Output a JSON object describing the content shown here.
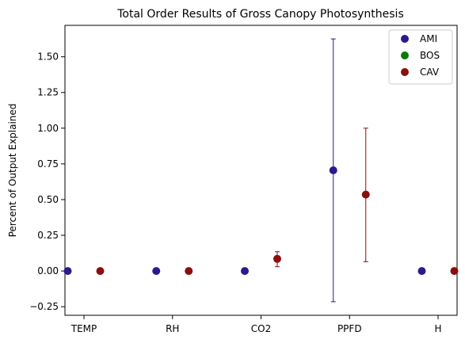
{
  "chart_data": {
    "type": "scatter",
    "title": "Total Order Results of Gross Canopy Photosynthesis",
    "xlabel": "",
    "ylabel": "Percent of Output Explained",
    "categories": [
      "TEMP",
      "RH",
      "CO2",
      "PPFD",
      "H"
    ],
    "ylim": [
      -0.31,
      1.72
    ],
    "yticks": [
      -0.25,
      0.0,
      0.25,
      0.5,
      0.75,
      1.0,
      1.25,
      1.5
    ],
    "ytick_labels": [
      "−0.25",
      "0.00",
      "0.25",
      "0.50",
      "0.75",
      "1.00",
      "1.25",
      "1.50"
    ],
    "grid": false,
    "legend_position": "top-right",
    "series": [
      {
        "name": "AMI",
        "color": "#2a1a8f",
        "values": [
          0.0,
          0.0,
          0.0,
          0.705,
          0.0
        ],
        "err_low": [
          0.0,
          0.0,
          0.0,
          -0.215,
          0.0
        ],
        "err_high": [
          0.0,
          0.0,
          0.0,
          1.625,
          0.0
        ]
      },
      {
        "name": "BOS",
        "color": "#0a7a0a",
        "values": [
          null,
          null,
          null,
          null,
          null
        ],
        "err_low": [
          null,
          null,
          null,
          null,
          null
        ],
        "err_high": [
          null,
          null,
          null,
          null,
          null
        ]
      },
      {
        "name": "CAV",
        "color": "#8b0d0d",
        "values": [
          0.0,
          0.0,
          0.085,
          0.535,
          0.0
        ],
        "err_low": [
          0.0,
          0.0,
          0.03,
          0.065,
          0.0
        ],
        "err_high": [
          0.0,
          0.0,
          0.135,
          1.0,
          0.0
        ]
      }
    ]
  }
}
